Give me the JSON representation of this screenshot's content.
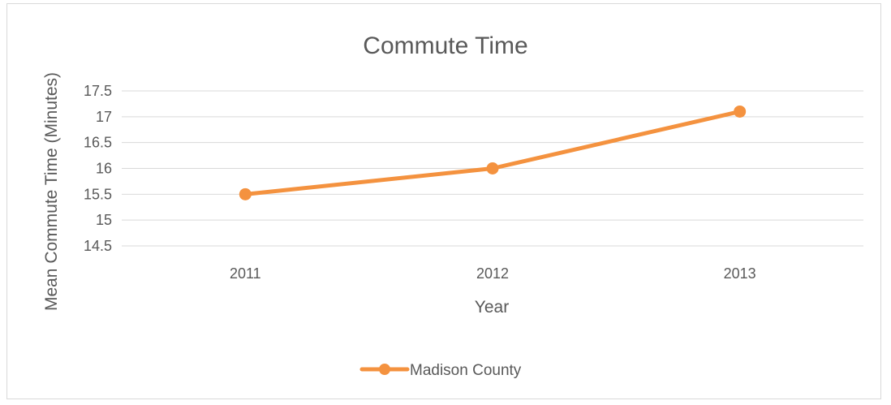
{
  "chart_data": {
    "type": "line",
    "title": "Commute Time",
    "xlabel": "Year",
    "ylabel": "Mean Commute Time (Minutes)",
    "categories": [
      "2011",
      "2012",
      "2013"
    ],
    "series": [
      {
        "name": "Madison County",
        "values": [
          15.5,
          16.0,
          17.1
        ],
        "color": "#f4923f"
      }
    ],
    "ylim": [
      14.5,
      17.5
    ],
    "yticks": [
      "14.5",
      "15",
      "15.5",
      "16",
      "16.5",
      "17",
      "17.5"
    ],
    "grid": true,
    "legend_position": "bottom",
    "colors": {
      "gridline": "#d9d9d9",
      "text": "#595959"
    }
  }
}
